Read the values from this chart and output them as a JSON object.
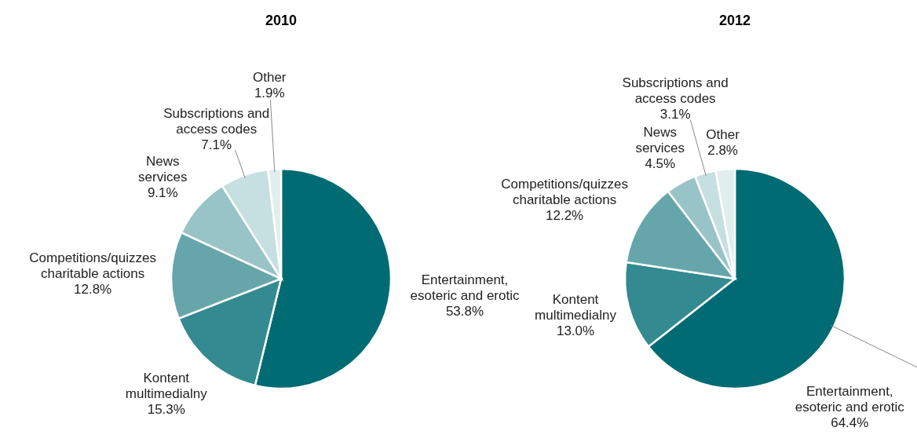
{
  "chart_data": [
    {
      "type": "pie",
      "title": "2010",
      "categories": [
        "Entertainment, esoteric and erotic",
        "Kontent multimedialny",
        "Competitions/quizzes charitable actions",
        "News services",
        "Subscriptions and access codes",
        "Other"
      ],
      "values": [
        53.8,
        15.3,
        12.8,
        9.1,
        7.1,
        1.9
      ],
      "value_labels": [
        "53.8%",
        "15.3%",
        "12.8%",
        "9.1%",
        "7.1%",
        "1.9%"
      ],
      "colors": [
        "#006b73",
        "#338a90",
        "#66a6ab",
        "#99c4c7",
        "#c6dfe0",
        "#e0eeee"
      ]
    },
    {
      "type": "pie",
      "title": "2012",
      "categories": [
        "Entertainment, esoteric and erotic",
        "Kontent multimedialny",
        "Competitions/quizzes charitable actions",
        "News services",
        "Subscriptions and access codes",
        "Other"
      ],
      "values": [
        64.4,
        13.0,
        12.2,
        4.5,
        3.1,
        2.8
      ],
      "value_labels": [
        "64.4%",
        "13.0%",
        "12.2%",
        "4.5%",
        "3.1%",
        "2.8%"
      ],
      "colors": [
        "#006b73",
        "#338a90",
        "#66a6ab",
        "#99c4c7",
        "#c6dfe0",
        "#e0eeee"
      ]
    }
  ]
}
